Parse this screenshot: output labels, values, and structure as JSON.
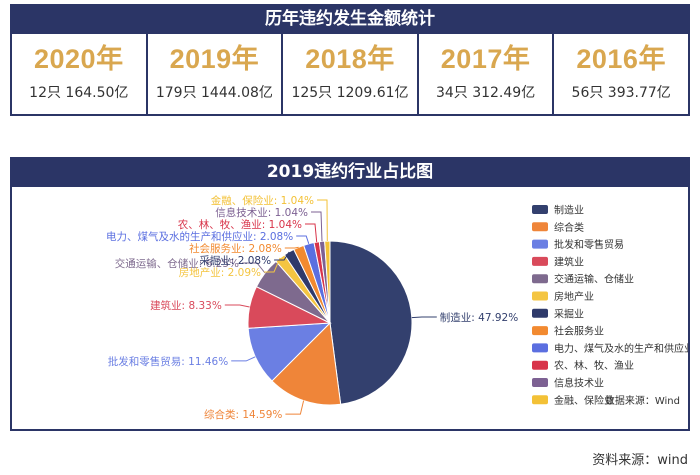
{
  "header": {
    "title": "历年违约发生金额统计"
  },
  "years": [
    {
      "year": "2020年",
      "stat": "12只 164.50亿"
    },
    {
      "year": "2019年",
      "stat": "179只 1444.08亿"
    },
    {
      "year": "2018年",
      "stat": "125只 1209.61亿"
    },
    {
      "year": "2017年",
      "stat": "34只 312.49亿"
    },
    {
      "year": "2016年",
      "stat": "56只 393.77亿"
    }
  ],
  "chart_header": {
    "title": "2019违约行业占比图"
  },
  "chart_data": {
    "type": "pie",
    "title": "2019违约行业占比图",
    "legend_position": "right",
    "source_label": "数据来源：Wind",
    "slices": [
      {
        "name": "制造业",
        "value": 47.92,
        "label": "制造业: 47.92%",
        "color": "#33406e"
      },
      {
        "name": "综合类",
        "value": 14.59,
        "label": "综合类: 14.59%",
        "color": "#ef8539"
      },
      {
        "name": "批发和零售贸易",
        "value": 11.46,
        "label": "批发和零售贸易: 11.46%",
        "color": "#6b7fe3"
      },
      {
        "name": "建筑业",
        "value": 8.33,
        "label": "建筑业: 8.33%",
        "color": "#d94a5b"
      },
      {
        "name": "交通运输、仓储业",
        "value": 6.25,
        "label": "交通运输、仓储业: 6.25%",
        "color": "#7e6a8e"
      },
      {
        "name": "房地产业",
        "value": 2.09,
        "label": "房地产业: 2.09%",
        "color": "#f4c542"
      },
      {
        "name": "采掘业",
        "value": 2.08,
        "label": "采掘业: 2.08%",
        "color": "#2f3a6b"
      },
      {
        "name": "社会服务业",
        "value": 2.08,
        "label": "社会服务业: 2.08%",
        "color": "#f28a30"
      },
      {
        "name": "电力、煤气及水的生产和供应业",
        "value": 2.08,
        "label": "电力、煤气及水的生产和供应业: 2.08%",
        "color": "#5b6fe0"
      },
      {
        "name": "农、林、牧、渔业",
        "value": 1.04,
        "label": "农、林、牧、渔业: 1.04%",
        "color": "#d8344a"
      },
      {
        "name": "信息技术业",
        "value": 1.04,
        "label": "信息技术业: 1.04%",
        "color": "#7d6193"
      },
      {
        "name": "金融、保险业",
        "value": 1.04,
        "label": "金融、保险业: 1.04%",
        "color": "#f3c136"
      }
    ]
  },
  "footer": {
    "source": "资料来源：wind"
  }
}
